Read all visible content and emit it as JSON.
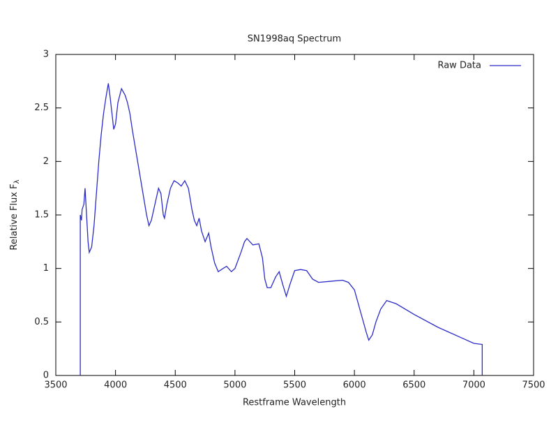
{
  "chart_data": {
    "type": "line",
    "title": "SN1998aq Spectrum",
    "xlabel": "Restframe Wavelength",
    "ylabel": "Relative Flux F",
    "ylabel_subscript": "λ",
    "xlim": [
      3500,
      7500
    ],
    "xticks": [
      3500,
      4000,
      4500,
      5000,
      5500,
      6000,
      6500,
      7000,
      7500
    ],
    "ylim": [
      0,
      3
    ],
    "yticks": [
      0,
      0.5,
      1,
      1.5,
      2,
      2.5,
      3
    ],
    "legend": "top-right",
    "series": [
      {
        "name": "Raw Data",
        "color": "#2a2ac8",
        "x": [
          3705,
          3705,
          3715,
          3720,
          3735,
          3745,
          3760,
          3770,
          3780,
          3800,
          3820,
          3840,
          3860,
          3880,
          3900,
          3920,
          3940,
          3955,
          3970,
          3985,
          4000,
          4020,
          4050,
          4080,
          4100,
          4120,
          4140,
          4170,
          4200,
          4230,
          4260,
          4280,
          4300,
          4330,
          4360,
          4380,
          4400,
          4410,
          4430,
          4460,
          4490,
          4520,
          4550,
          4580,
          4610,
          4640,
          4660,
          4680,
          4700,
          4720,
          4750,
          4780,
          4800,
          4830,
          4860,
          4900,
          4930,
          4970,
          5000,
          5050,
          5080,
          5100,
          5150,
          5200,
          5230,
          5250,
          5270,
          5300,
          5340,
          5370,
          5400,
          5430,
          5460,
          5500,
          5550,
          5600,
          5650,
          5700,
          5800,
          5900,
          5950,
          6000,
          6050,
          6100,
          6120,
          6150,
          6180,
          6220,
          6270,
          6350,
          6500,
          6700,
          6900,
          7000,
          7070,
          7070
        ],
        "values": [
          0,
          1.5,
          1.45,
          1.55,
          1.6,
          1.75,
          1.45,
          1.25,
          1.15,
          1.2,
          1.4,
          1.7,
          2.0,
          2.25,
          2.45,
          2.6,
          2.73,
          2.6,
          2.45,
          2.3,
          2.35,
          2.55,
          2.68,
          2.62,
          2.55,
          2.45,
          2.3,
          2.1,
          1.9,
          1.7,
          1.5,
          1.4,
          1.45,
          1.6,
          1.75,
          1.7,
          1.5,
          1.47,
          1.6,
          1.75,
          1.82,
          1.8,
          1.77,
          1.82,
          1.75,
          1.55,
          1.45,
          1.4,
          1.47,
          1.35,
          1.25,
          1.33,
          1.2,
          1.05,
          0.97,
          1.0,
          1.02,
          0.97,
          1.0,
          1.15,
          1.25,
          1.28,
          1.22,
          1.23,
          1.1,
          0.9,
          0.82,
          0.82,
          0.92,
          0.97,
          0.85,
          0.74,
          0.85,
          0.98,
          0.99,
          0.98,
          0.9,
          0.87,
          0.88,
          0.89,
          0.87,
          0.8,
          0.6,
          0.4,
          0.33,
          0.38,
          0.5,
          0.62,
          0.7,
          0.67,
          0.57,
          0.45,
          0.35,
          0.3,
          0.29,
          0
        ]
      }
    ]
  }
}
